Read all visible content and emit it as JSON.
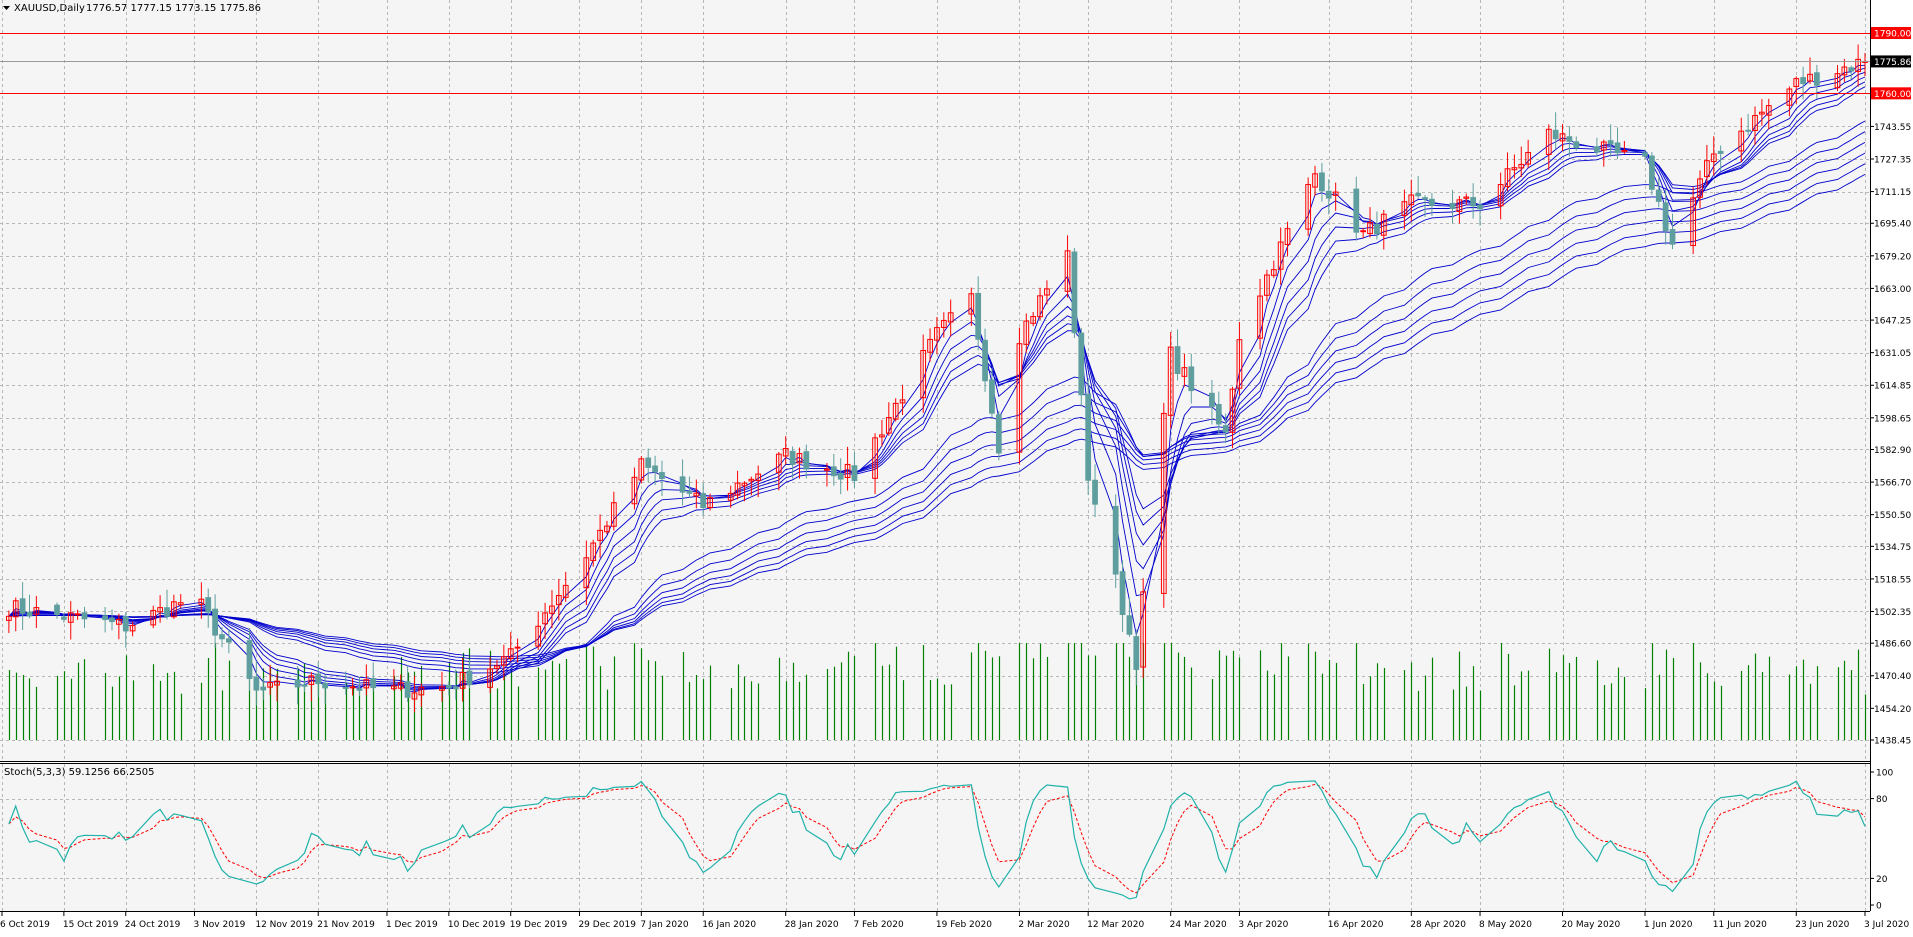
{
  "header": {
    "symbol_label": "XAUUSD,Daily",
    "ohlc_text": "1776.57 1777.15 1773.15 1775.86"
  },
  "price_pane": {
    "y_ticks": [
      "1790.00",
      "1775.86",
      "1760.00",
      "1743.55",
      "1727.35",
      "1711.15",
      "1695.40",
      "1679.20",
      "1663.00",
      "1647.25",
      "1631.05",
      "1614.85",
      "1598.65",
      "1582.90",
      "1566.70",
      "1550.50",
      "1534.75",
      "1518.55",
      "1502.35",
      "1486.60",
      "1470.40",
      "1454.20",
      "1438.45"
    ],
    "levels": [
      {
        "name": "resistance",
        "value": 1790.0,
        "label": "1790.00",
        "color": "#ff0000"
      },
      {
        "name": "support",
        "value": 1760.0,
        "label": "1760.00",
        "color": "#ff0000"
      }
    ],
    "current_price": {
      "value": 1775.86,
      "label": "1775.86"
    }
  },
  "stoch_pane": {
    "label": "Stoch(5,3,3) 59.1256 66.2505",
    "y_ticks": [
      "100",
      "80",
      "20",
      "0"
    ],
    "main_color": "#20b2aa",
    "signal_color": "#ff0000"
  },
  "x_axis": {
    "labels": [
      "6 Oct 2019",
      "15 Oct 2019",
      "24 Oct 2019",
      "3 Nov 2019",
      "12 Nov 2019",
      "21 Nov 2019",
      "1 Dec 2019",
      "10 Dec 2019",
      "19 Dec 2019",
      "29 Dec 2019",
      "7 Jan 2020",
      "16 Jan 2020",
      "28 Jan 2020",
      "7 Feb 2020",
      "19 Feb 2020",
      "2 Mar 2020",
      "12 Mar 2020",
      "24 Mar 2020",
      "3 Apr 2020",
      "16 Apr 2020",
      "28 Apr 2020",
      "8 May 2020",
      "20 May 2020",
      "1 Jun 2020",
      "11 Jun 2020",
      "23 Jun 2020",
      "3 Jul 2020"
    ]
  },
  "colors": {
    "background": "#ffffff",
    "plot_background": "#f5f5f5",
    "grid": "#b8b8b8",
    "bull_candle": "#ff0000",
    "bear_candle": "#5f9e9e",
    "moving_averages": "#0000cd",
    "volume": "#008000"
  },
  "chart_data": [
    {
      "type": "candlestick",
      "title": "XAUUSD,Daily",
      "ylim": [
        1438.45,
        1790.0
      ],
      "grid": true,
      "waypoints": [
        {
          "x": "6 Oct 2019",
          "y": 1505
        },
        {
          "x": "24 Oct 2019",
          "y": 1495
        },
        {
          "x": "3 Nov 2019",
          "y": 1510
        },
        {
          "x": "12 Nov 2019",
          "y": 1462
        },
        {
          "x": "21 Nov 2019",
          "y": 1468
        },
        {
          "x": "1 Dec 2019",
          "y": 1463
        },
        {
          "x": "10 Dec 2019",
          "y": 1465
        },
        {
          "x": "19 Dec 2019",
          "y": 1480
        },
        {
          "x": "29 Dec 2019",
          "y": 1525
        },
        {
          "x": "7 Jan 2020",
          "y": 1575
        },
        {
          "x": "16 Jan 2020",
          "y": 1555
        },
        {
          "x": "28 Jan 2020",
          "y": 1580
        },
        {
          "x": "7 Feb 2020",
          "y": 1570
        },
        {
          "x": "19 Feb 2020",
          "y": 1640
        },
        {
          "x": "24 Feb 2020",
          "y": 1658
        },
        {
          "x": "28 Feb 2020",
          "y": 1585
        },
        {
          "x": "2 Mar 2020",
          "y": 1640
        },
        {
          "x": "9 Mar 2020",
          "y": 1680
        },
        {
          "x": "12 Mar 2020",
          "y": 1570
        },
        {
          "x": "19 Mar 2020",
          "y": 1478
        },
        {
          "x": "24 Mar 2020",
          "y": 1630
        },
        {
          "x": "1 Apr 2020",
          "y": 1590
        },
        {
          "x": "3 Apr 2020",
          "y": 1640
        },
        {
          "x": "14 Apr 2020",
          "y": 1720
        },
        {
          "x": "21 Apr 2020",
          "y": 1690
        },
        {
          "x": "28 Apr 2020",
          "y": 1705
        },
        {
          "x": "8 May 2020",
          "y": 1705
        },
        {
          "x": "18 May 2020",
          "y": 1740
        },
        {
          "x": "1 Jun 2020",
          "y": 1725
        },
        {
          "x": "5 Jun 2020",
          "y": 1685
        },
        {
          "x": "11 Jun 2020",
          "y": 1730
        },
        {
          "x": "23 Jun 2020",
          "y": 1765
        },
        {
          "x": "3 Jul 2020",
          "y": 1776
        }
      ],
      "volume_range": [
        1438.45,
        1486.6
      ],
      "moving_averages_count": 12
    },
    {
      "type": "line",
      "title": "Stoch(5,3,3) 59.1256 66.2505",
      "ylim": [
        0,
        100
      ],
      "levels": [
        20,
        80
      ],
      "series": [
        {
          "name": "main",
          "last": 59.1256
        },
        {
          "name": "signal",
          "last": 66.2505
        }
      ]
    }
  ]
}
